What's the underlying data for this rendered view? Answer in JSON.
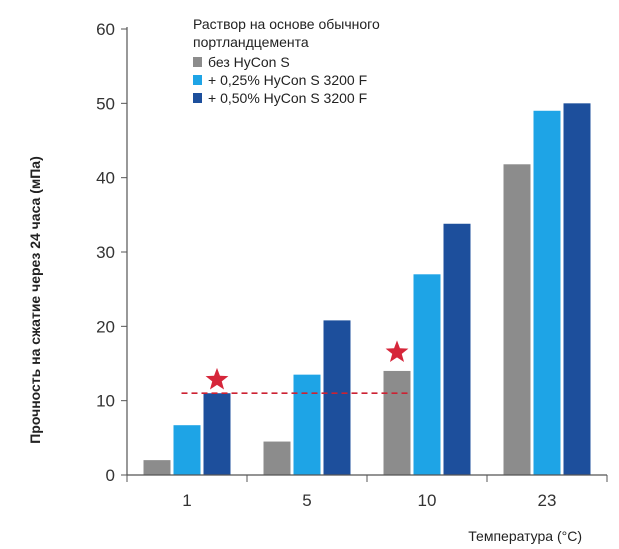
{
  "chart_data": {
    "type": "bar",
    "title": "",
    "xlabel": "Температура (°C)",
    "ylabel": "Прочность на сжатие через 24 часа (мПа)",
    "categories": [
      "1",
      "5",
      "10",
      "23"
    ],
    "ylim": [
      0,
      60
    ],
    "yticks": [
      0,
      10,
      20,
      30,
      40,
      50,
      60
    ],
    "grid": false,
    "legend_title_lines": [
      "Раствор на основе обычного",
      "портландцемента"
    ],
    "legend_position": "top-left",
    "series": [
      {
        "name": "без HyCon S",
        "color": "#8c8c8c",
        "values": [
          2,
          4.5,
          14,
          41.8
        ]
      },
      {
        "name": "+ 0,25% HyCon S 3200 F",
        "color": "#1ea4e6",
        "values": [
          6.7,
          13.5,
          27,
          49
        ]
      },
      {
        "name": "+ 0,50% HyCon S 3200 F",
        "color": "#1d4f9c",
        "values": [
          11,
          20.8,
          33.8,
          50
        ]
      }
    ],
    "annotations": {
      "reference_line": {
        "value": 11,
        "color": "#cc2233",
        "style": "dashed"
      },
      "stars": [
        {
          "category": "1",
          "series": 2,
          "value": 12.8,
          "color": "#d6263a"
        },
        {
          "category": "10",
          "series": 0,
          "value": 16.5,
          "color": "#d6263a"
        }
      ]
    }
  }
}
